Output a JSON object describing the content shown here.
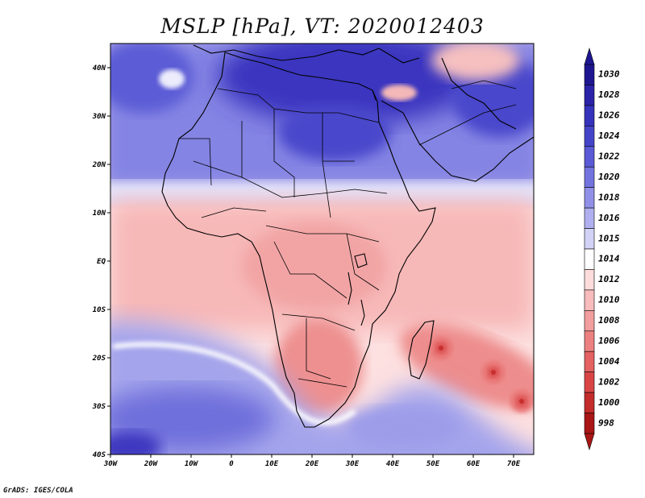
{
  "title": "MSLP [hPa], VT: 2020012403",
  "footer": "GrADS: IGES/COLA",
  "map": {
    "region": "Africa",
    "lon_range": [
      -30,
      75
    ],
    "lat_range": [
      -40,
      45
    ],
    "lon_ticks": [
      {
        "value": -30,
        "label": "30W"
      },
      {
        "value": -20,
        "label": "20W"
      },
      {
        "value": -10,
        "label": "10W"
      },
      {
        "value": 0,
        "label": "0"
      },
      {
        "value": 10,
        "label": "10E"
      },
      {
        "value": 20,
        "label": "20E"
      },
      {
        "value": 30,
        "label": "30E"
      },
      {
        "value": 40,
        "label": "40E"
      },
      {
        "value": 50,
        "label": "50E"
      },
      {
        "value": 60,
        "label": "60E"
      },
      {
        "value": 70,
        "label": "70E"
      }
    ],
    "lat_ticks": [
      {
        "value": 40,
        "label": "40N"
      },
      {
        "value": 30,
        "label": "30N"
      },
      {
        "value": 20,
        "label": "20N"
      },
      {
        "value": 10,
        "label": "10N"
      },
      {
        "value": 0,
        "label": "EQ"
      },
      {
        "value": -10,
        "label": "10S"
      },
      {
        "value": -20,
        "label": "20S"
      },
      {
        "value": -30,
        "label": "30S"
      },
      {
        "value": -40,
        "label": "40S"
      }
    ],
    "pressure_lows": [
      {
        "lon": 52,
        "lat": -18,
        "value": 1004
      },
      {
        "lon": 65,
        "lat": -23,
        "value": 1005
      },
      {
        "lon": 72,
        "lat": -29,
        "value": 1003
      }
    ]
  },
  "colorbar": {
    "levels": [
      {
        "label": "1030",
        "color": "#1e1690"
      },
      {
        "label": "1028",
        "color": "#2a23a8"
      },
      {
        "label": "1026",
        "color": "#3532bb"
      },
      {
        "label": "1024",
        "color": "#4444c9"
      },
      {
        "label": "1022",
        "color": "#5a5ad6"
      },
      {
        "label": "1020",
        "color": "#7373df"
      },
      {
        "label": "1018",
        "color": "#9090e8"
      },
      {
        "label": "1016",
        "color": "#b0b0f0"
      },
      {
        "label": "1015",
        "color": "#d2d2f7"
      },
      {
        "label": "1014",
        "color": "#ffffff"
      },
      {
        "label": "1012",
        "color": "#fddcdc"
      },
      {
        "label": "1010",
        "color": "#f8bcbc"
      },
      {
        "label": "1008",
        "color": "#f29e9e"
      },
      {
        "label": "1006",
        "color": "#ec8080"
      },
      {
        "label": "1004",
        "color": "#e46262"
      },
      {
        "label": "1002",
        "color": "#d94545"
      },
      {
        "label": "1000",
        "color": "#c42c2c"
      },
      {
        "label": "998",
        "color": "#a91616"
      }
    ]
  }
}
